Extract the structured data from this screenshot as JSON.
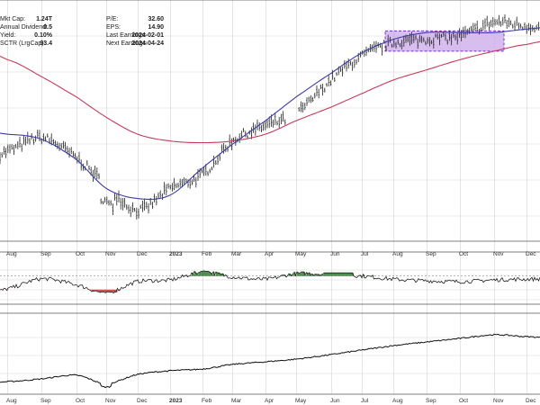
{
  "stats_left": [
    {
      "label": "Mkt Cap:",
      "value": "1.24T"
    },
    {
      "label": "Annual Dividend:",
      "value": "0.5"
    },
    {
      "label": "Yield:",
      "value": "0.10%"
    },
    {
      "label": "SCTR (LrgCap):",
      "value": "93.4"
    }
  ],
  "stats_right": [
    {
      "label": "P/E:",
      "value": "32.60"
    },
    {
      "label": "EPS:",
      "value": "14.90"
    },
    {
      "label": "Last Earnings:",
      "value": "2024-02-01"
    },
    {
      "label": "Next Earnings:",
      "value": "2024-04-24"
    }
  ],
  "month_labels": [
    "Aug",
    "Sep",
    "Oct",
    "Nov",
    "Dec",
    "2023",
    "Feb",
    "Mar",
    "Apr",
    "May",
    "Jun",
    "Jul",
    "Aug",
    "Sep",
    "Oct",
    "Nov",
    "Dec"
  ],
  "colors": {
    "price_bars": "#222222",
    "ma_short": "#3c3ca8",
    "ma_long": "#c43c5a",
    "highlight_fill": "#c9a8ea",
    "highlight_stroke": "#7a2fc8",
    "oscillator_up": "#2f7a2f",
    "oscillator_down": "#c0392b",
    "grid": "#d4d4d4"
  },
  "chart_data": {
    "type": "line",
    "x": [
      "Aug",
      "Sep",
      "Oct",
      "Nov",
      "Dec",
      "2023",
      "Feb",
      "Mar",
      "Apr",
      "May",
      "Jun",
      "Jul",
      "Aug",
      "Sep",
      "Oct",
      "Nov",
      "Dec"
    ],
    "grid": true,
    "panels": [
      {
        "name": "price",
        "type": "bar",
        "series": [
          {
            "values": [
              190,
              198,
              186,
              170,
              155,
              168,
              176,
              196,
              205,
              212,
              232,
              246,
              254,
              256,
              258,
              266,
              264
            ]
          },
          {
            "values": [
              200,
              197,
              185,
              168,
              162,
              164,
              180,
              194,
              208,
              222,
              236,
              248,
              256,
              260,
              260,
              260,
              262
            ]
          },
          {
            "values": [
              244,
              234,
              222,
              210,
              200,
              196,
              195,
              196,
              200,
              208,
              216,
              224,
              232,
              238,
              244,
              249,
              253
            ]
          }
        ],
        "annotations": [
          "highlighted consolidation box Aug–Nov"
        ]
      },
      {
        "name": "oscillator",
        "type": "line",
        "values": [
          30,
          55,
          40,
          20,
          48,
          52,
          72,
          60,
          54,
          68,
          66,
          62,
          54,
          50,
          48,
          52,
          54
        ]
      },
      {
        "name": "relative line",
        "type": "line",
        "values": [
          10,
          13,
          17,
          8,
          18,
          22,
          24,
          29,
          32,
          35,
          40,
          45,
          50,
          54,
          58,
          62,
          60
        ]
      }
    ]
  }
}
